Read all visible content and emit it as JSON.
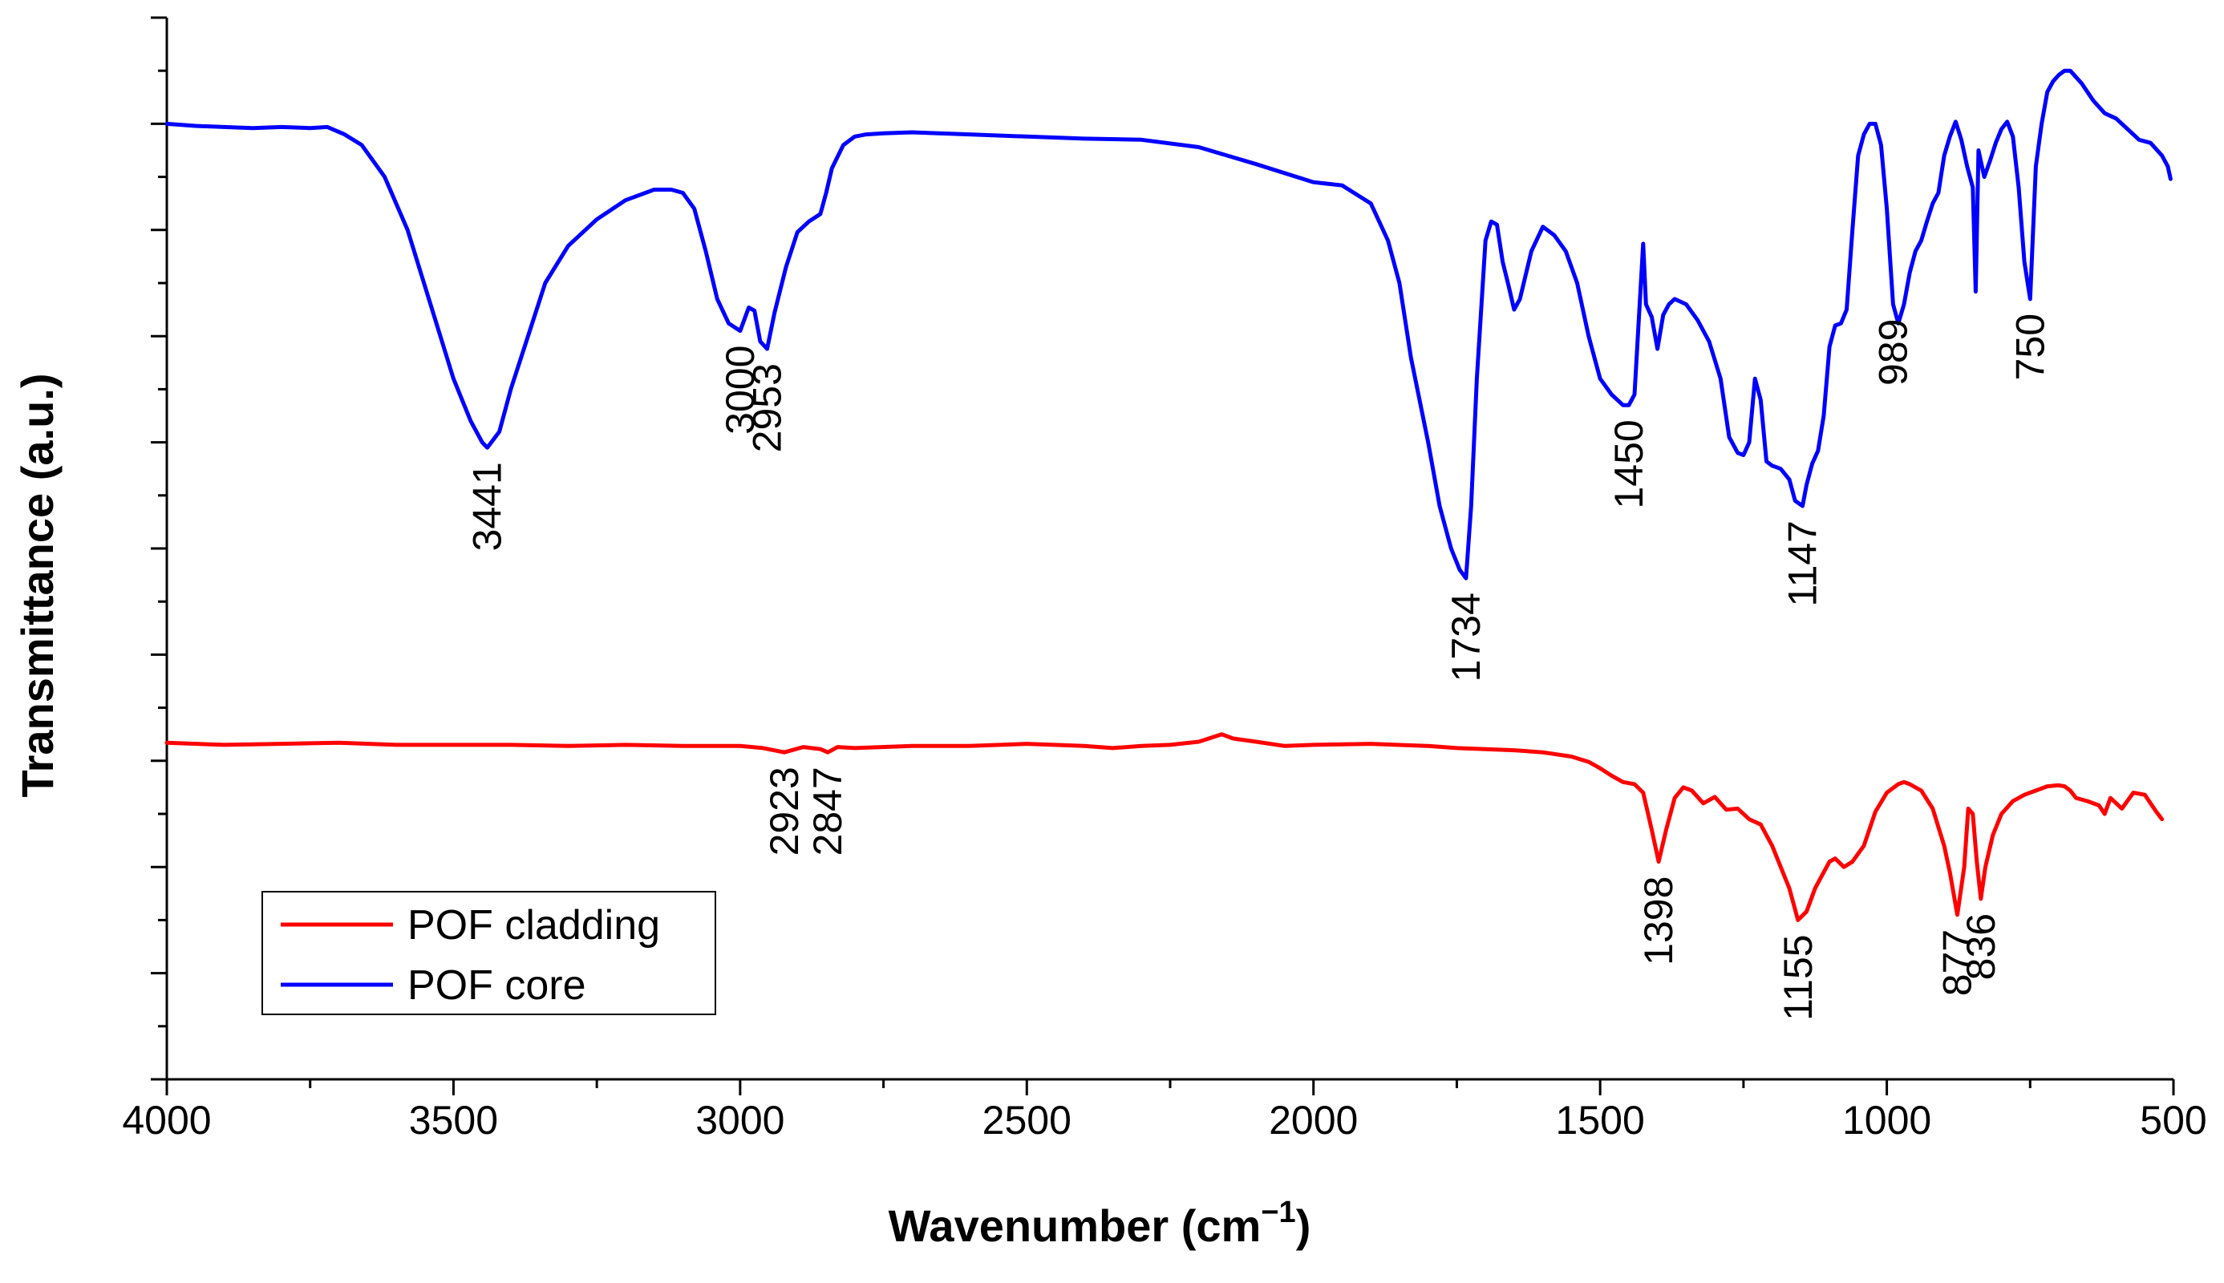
{
  "chart_data": {
    "type": "line",
    "title": "",
    "xlabel": "Wavenumber (cm",
    "xlabel_sup": "−1",
    "xlabel_close": ")",
    "ylabel": "Transmittance (a.u.)",
    "xlim": [
      4000,
      500
    ],
    "ylim": [
      0,
      10
    ],
    "x_ticks": [
      4000,
      3500,
      3000,
      2500,
      2000,
      1500,
      1000,
      500
    ],
    "y_ticks": [
      0,
      0.5,
      1,
      1.5,
      2,
      2.5,
      3,
      3.5,
      4,
      4.5,
      5,
      5.5,
      6,
      6.5,
      7,
      7.5,
      8,
      8.5,
      9,
      9.5,
      10
    ],
    "y_tick_labels": "none",
    "legend": {
      "position": "bottom-left",
      "entries": [
        "POF cladding",
        "POF core"
      ]
    },
    "series": [
      {
        "name": "POF cladding",
        "color": "#ff0000",
        "x": [
          4000,
          3900,
          3800,
          3700,
          3600,
          3500,
          3400,
          3300,
          3200,
          3100,
          3000,
          2960,
          2923,
          2890,
          2860,
          2847,
          2830,
          2800,
          2700,
          2600,
          2500,
          2400,
          2350,
          2300,
          2250,
          2200,
          2160,
          2140,
          2100,
          2050,
          2000,
          1900,
          1800,
          1750,
          1700,
          1650,
          1600,
          1550,
          1520,
          1500,
          1480,
          1460,
          1440,
          1425,
          1410,
          1398,
          1385,
          1370,
          1355,
          1340,
          1320,
          1300,
          1280,
          1260,
          1240,
          1220,
          1200,
          1185,
          1170,
          1155,
          1140,
          1125,
          1110,
          1100,
          1090,
          1075,
          1060,
          1040,
          1020,
          1000,
          980,
          970,
          960,
          940,
          920,
          900,
          890,
          877,
          865,
          858,
          850,
          843,
          836,
          828,
          815,
          800,
          780,
          760,
          740,
          720,
          700,
          690,
          680,
          670,
          650,
          630,
          620,
          610,
          590,
          570,
          550,
          530,
          520
        ],
        "values": [
          3.17,
          3.15,
          3.16,
          3.17,
          3.15,
          3.15,
          3.15,
          3.14,
          3.15,
          3.14,
          3.14,
          3.12,
          3.08,
          3.13,
          3.11,
          3.08,
          3.13,
          3.12,
          3.14,
          3.14,
          3.16,
          3.14,
          3.12,
          3.14,
          3.15,
          3.18,
          3.25,
          3.21,
          3.18,
          3.14,
          3.15,
          3.16,
          3.14,
          3.12,
          3.11,
          3.1,
          3.08,
          3.04,
          2.99,
          2.93,
          2.86,
          2.8,
          2.78,
          2.7,
          2.35,
          2.05,
          2.35,
          2.65,
          2.75,
          2.72,
          2.6,
          2.66,
          2.54,
          2.55,
          2.45,
          2.4,
          2.2,
          2.0,
          1.8,
          1.5,
          1.58,
          1.8,
          1.95,
          2.05,
          2.08,
          2.0,
          2.05,
          2.2,
          2.52,
          2.7,
          2.78,
          2.8,
          2.78,
          2.72,
          2.55,
          2.2,
          1.95,
          1.55,
          2.0,
          2.55,
          2.5,
          2.05,
          1.7,
          2.0,
          2.3,
          2.5,
          2.62,
          2.68,
          2.72,
          2.76,
          2.77,
          2.76,
          2.72,
          2.65,
          2.62,
          2.58,
          2.5,
          2.65,
          2.55,
          2.7,
          2.68,
          2.52,
          2.45
        ]
      },
      {
        "name": "POF core",
        "color": "#0000ff",
        "x": [
          4000,
          3950,
          3900,
          3850,
          3800,
          3750,
          3720,
          3690,
          3660,
          3620,
          3580,
          3540,
          3500,
          3470,
          3450,
          3441,
          3420,
          3400,
          3370,
          3340,
          3300,
          3250,
          3200,
          3150,
          3120,
          3100,
          3080,
          3060,
          3040,
          3020,
          3000,
          2985,
          2975,
          2965,
          2953,
          2940,
          2920,
          2900,
          2880,
          2860,
          2850,
          2840,
          2820,
          2800,
          2780,
          2750,
          2700,
          2600,
          2500,
          2400,
          2300,
          2200,
          2100,
          2000,
          1950,
          1900,
          1870,
          1850,
          1830,
          1800,
          1780,
          1760,
          1745,
          1734,
          1725,
          1715,
          1700,
          1690,
          1680,
          1670,
          1660,
          1650,
          1640,
          1620,
          1600,
          1580,
          1560,
          1540,
          1520,
          1500,
          1480,
          1460,
          1450,
          1440,
          1430,
          1425,
          1420,
          1410,
          1400,
          1390,
          1380,
          1370,
          1350,
          1330,
          1310,
          1290,
          1275,
          1260,
          1250,
          1240,
          1230,
          1220,
          1210,
          1200,
          1185,
          1170,
          1160,
          1147,
          1140,
          1130,
          1120,
          1110,
          1100,
          1090,
          1080,
          1070,
          1060,
          1050,
          1040,
          1030,
          1020,
          1010,
          1000,
          989,
          980,
          970,
          960,
          950,
          940,
          930,
          920,
          910,
          900,
          890,
          880,
          870,
          860,
          850,
          845,
          840,
          830,
          820,
          810,
          800,
          790,
          780,
          770,
          760,
          750,
          740,
          730,
          720,
          710,
          700,
          690,
          680,
          660,
          640,
          620,
          600,
          580,
          560,
          540,
          520,
          510,
          505
        ],
        "values": [
          9.0,
          8.98,
          8.97,
          8.96,
          8.97,
          8.96,
          8.97,
          8.9,
          8.8,
          8.5,
          8.0,
          7.3,
          6.6,
          6.2,
          6.0,
          5.95,
          6.1,
          6.5,
          7.0,
          7.5,
          7.85,
          8.1,
          8.28,
          8.38,
          8.38,
          8.35,
          8.2,
          7.8,
          7.35,
          7.12,
          7.05,
          7.27,
          7.24,
          6.95,
          6.88,
          7.22,
          7.65,
          7.98,
          8.08,
          8.15,
          8.35,
          8.58,
          8.8,
          8.88,
          8.9,
          8.91,
          8.92,
          8.9,
          8.88,
          8.86,
          8.85,
          8.78,
          8.62,
          8.45,
          8.42,
          8.25,
          7.9,
          7.5,
          6.8,
          6.0,
          5.4,
          5.0,
          4.8,
          4.72,
          5.4,
          6.6,
          7.9,
          8.08,
          8.05,
          7.7,
          7.48,
          7.25,
          7.35,
          7.8,
          8.03,
          7.95,
          7.8,
          7.5,
          7.0,
          6.6,
          6.45,
          6.35,
          6.35,
          6.45,
          7.4,
          7.87,
          7.3,
          7.18,
          6.88,
          7.2,
          7.3,
          7.35,
          7.3,
          7.15,
          6.95,
          6.6,
          6.05,
          5.9,
          5.88,
          6.0,
          6.6,
          6.4,
          5.82,
          5.78,
          5.75,
          5.65,
          5.45,
          5.4,
          5.6,
          5.8,
          5.92,
          6.25,
          6.9,
          7.1,
          7.12,
          7.25,
          8.0,
          8.7,
          8.9,
          9.0,
          9.0,
          8.8,
          8.2,
          7.3,
          7.12,
          7.3,
          7.6,
          7.8,
          7.9,
          8.08,
          8.25,
          8.35,
          8.7,
          8.88,
          9.02,
          8.85,
          8.6,
          8.4,
          7.42,
          8.75,
          8.5,
          8.65,
          8.82,
          8.95,
          9.02,
          8.88,
          8.4,
          7.7,
          7.35,
          8.6,
          9.0,
          9.3,
          9.4,
          9.46,
          9.5,
          9.5,
          9.38,
          9.22,
          9.1,
          9.05,
          8.95,
          8.85,
          8.82,
          8.7,
          8.6,
          8.48
        ]
      }
    ],
    "annotations": [
      {
        "text": "3441",
        "series": "POF core",
        "x": 3441
      },
      {
        "text": "3000",
        "series": "POF core",
        "x": 3000
      },
      {
        "text": "2953",
        "series": "POF core",
        "x": 2953
      },
      {
        "text": "1734",
        "series": "POF core",
        "x": 1734
      },
      {
        "text": "1450",
        "series": "POF core",
        "x": 1450
      },
      {
        "text": "1147",
        "series": "POF core",
        "x": 1147
      },
      {
        "text": "989",
        "series": "POF core",
        "x": 989
      },
      {
        "text": "750",
        "series": "POF core",
        "x": 750
      },
      {
        "text": "2923",
        "series": "POF cladding",
        "x": 2923
      },
      {
        "text": "2847",
        "series": "POF cladding",
        "x": 2847
      },
      {
        "text": "1398",
        "series": "POF cladding",
        "x": 1398
      },
      {
        "text": "1155",
        "series": "POF cladding",
        "x": 1155
      },
      {
        "text": "877",
        "series": "POF cladding",
        "x": 877
      },
      {
        "text": "836",
        "series": "POF cladding",
        "x": 836
      }
    ]
  }
}
